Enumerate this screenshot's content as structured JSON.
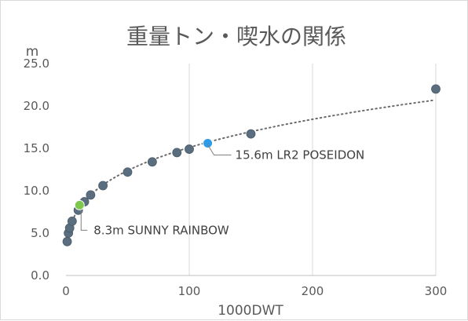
{
  "chart_data": {
    "type": "scatter",
    "title": "重量トン・喫水の関係",
    "xlabel": "1000DWT",
    "ylabel": "m",
    "xlim": [
      0,
      300
    ],
    "ylim": [
      0,
      25
    ],
    "x_ticks": [
      "0",
      "100",
      "200",
      "300"
    ],
    "y_ticks": [
      "0.0",
      "5.0",
      "10.0",
      "15.0",
      "20.0",
      "25.0"
    ],
    "grid": "vertical",
    "legend": "none",
    "trendline": "dotted power",
    "series": [
      {
        "color": "#5b6e7f",
        "x": [
          1,
          2,
          3,
          5,
          10,
          15,
          20,
          30,
          50,
          70,
          90,
          100,
          150,
          300
        ],
        "y": [
          4.0,
          5.0,
          5.6,
          6.4,
          7.7,
          8.7,
          9.5,
          10.6,
          12.2,
          13.4,
          14.5,
          14.9,
          16.7,
          22.0
        ]
      }
    ],
    "highlights": [
      {
        "x": 115,
        "y": 15.6,
        "color": "#2e9be8",
        "label": "15.6m LR2 POSEIDON"
      },
      {
        "x": 11,
        "y": 8.3,
        "color": "#7ec850",
        "label": "8.3m SUNNY RAINBOW"
      }
    ]
  }
}
